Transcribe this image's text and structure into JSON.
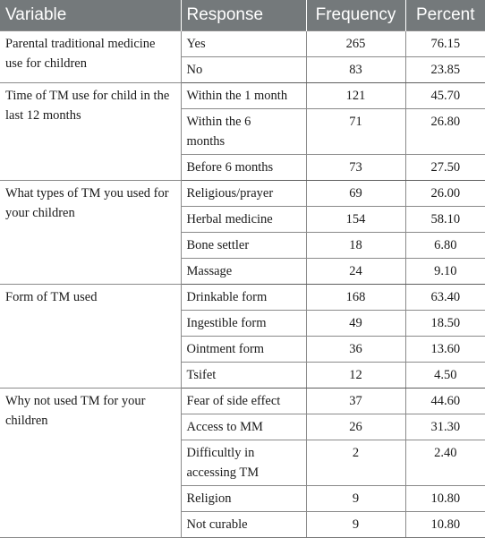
{
  "headers": {
    "variable": "Variable",
    "response": "Response",
    "frequency": "Frequency",
    "percent": "Percent"
  },
  "groups": [
    {
      "variable": "Parental traditional medicine use for children",
      "rows": [
        {
          "response": "Yes",
          "frequency": "265",
          "percent": "76.15"
        },
        {
          "response": "No",
          "frequency": "83",
          "percent": "23.85"
        }
      ]
    },
    {
      "variable": "Time of TM use for child in the last 12 months",
      "rows": [
        {
          "response": "Within the 1 month",
          "frequency": "121",
          "percent": "45.70"
        },
        {
          "response": "Within the 6 months",
          "frequency": "71",
          "percent": "26.80"
        },
        {
          "response": "Before 6 months",
          "frequency": "73",
          "percent": "27.50"
        }
      ]
    },
    {
      "variable": "What types of TM you used for your children",
      "rows": [
        {
          "response": "Religious/prayer",
          "frequency": "69",
          "percent": "26.00"
        },
        {
          "response": "Herbal medicine",
          "frequency": "154",
          "percent": "58.10"
        },
        {
          "response": "Bone settler",
          "frequency": "18",
          "percent": "6.80"
        },
        {
          "response": "Massage",
          "frequency": "24",
          "percent": "9.10"
        }
      ]
    },
    {
      "variable": "Form of TM used",
      "rows": [
        {
          "response": "Drinkable form",
          "frequency": "168",
          "percent": "63.40"
        },
        {
          "response": "Ingestible form",
          "frequency": "49",
          "percent": "18.50"
        },
        {
          "response": "Ointment form",
          "frequency": "36",
          "percent": "13.60"
        },
        {
          "response": "Tsifet",
          "frequency": "12",
          "percent": "4.50"
        }
      ]
    },
    {
      "variable": "Why not used TM for your children",
      "rows": [
        {
          "response": "Fear of side effect",
          "frequency": "37",
          "percent": "44.60"
        },
        {
          "response": "Access to MM",
          "frequency": "26",
          "percent": "31.30"
        },
        {
          "response": "Difficultly in accessing TM",
          "frequency": "2",
          "percent": "2.40"
        },
        {
          "response": "Religion",
          "frequency": "9",
          "percent": "10.80"
        },
        {
          "response": "Not curable",
          "frequency": "9",
          "percent": "10.80"
        }
      ]
    }
  ]
}
